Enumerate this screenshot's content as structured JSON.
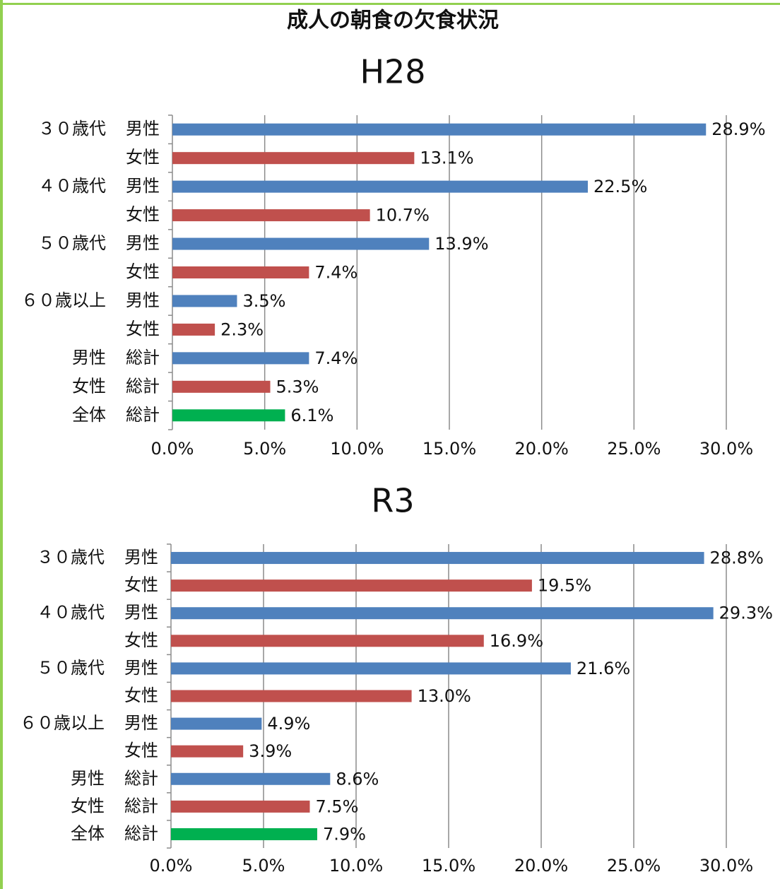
{
  "title": "成人の朝食の欠食状況",
  "chart_data": [
    {
      "type": "bar",
      "orientation": "horizontal",
      "title": "H28",
      "category_groups": [
        "３０歳代",
        null,
        "４０歳代",
        null,
        "５０歳代",
        null,
        "６０歳以上",
        null,
        "男性",
        "女性",
        "全体"
      ],
      "categories": [
        "男性",
        "女性",
        "男性",
        "女性",
        "男性",
        "女性",
        "男性",
        "女性",
        "総計",
        "総計",
        "総計"
      ],
      "values": [
        28.9,
        13.1,
        22.5,
        10.7,
        13.9,
        7.4,
        3.5,
        2.3,
        7.4,
        5.3,
        6.1
      ],
      "value_labels": [
        "28.9%",
        "13.1%",
        "22.5%",
        "10.7%",
        "13.9%",
        "7.4%",
        "3.5%",
        "2.3%",
        "7.4%",
        "5.3%",
        "6.1%"
      ],
      "colors": [
        "#4f81bd",
        "#c0504d",
        "#4f81bd",
        "#c0504d",
        "#4f81bd",
        "#c0504d",
        "#4f81bd",
        "#c0504d",
        "#4f81bd",
        "#c0504d",
        "#00b050"
      ],
      "xlim": [
        0,
        30
      ],
      "xticks": [
        {
          "value": 0,
          "label": "0.0%"
        },
        {
          "value": 5,
          "label": "5.0%"
        },
        {
          "value": 10,
          "label": "10.0%"
        },
        {
          "value": 15,
          "label": "15.0%"
        },
        {
          "value": 20,
          "label": "20.0%"
        },
        {
          "value": 25,
          "label": "25.0%"
        },
        {
          "value": 30,
          "label": "30.0%"
        }
      ],
      "grid": true
    },
    {
      "type": "bar",
      "orientation": "horizontal",
      "title": "R3",
      "category_groups": [
        "３０歳代",
        null,
        "４０歳代",
        null,
        "５０歳代",
        null,
        "６０歳以上",
        null,
        "男性",
        "女性",
        "全体"
      ],
      "categories": [
        "男性",
        "女性",
        "男性",
        "女性",
        "男性",
        "女性",
        "男性",
        "女性",
        "総計",
        "総計",
        "総計"
      ],
      "values": [
        28.8,
        19.5,
        29.3,
        16.9,
        21.6,
        13.0,
        4.9,
        3.9,
        8.6,
        7.5,
        7.9
      ],
      "value_labels": [
        "28.8%",
        "19.5%",
        "29.3%",
        "16.9%",
        "21.6%",
        "13.0%",
        "4.9%",
        "3.9%",
        "8.6%",
        "7.5%",
        "7.9%"
      ],
      "colors": [
        "#4f81bd",
        "#c0504d",
        "#4f81bd",
        "#c0504d",
        "#4f81bd",
        "#c0504d",
        "#4f81bd",
        "#c0504d",
        "#4f81bd",
        "#c0504d",
        "#00b050"
      ],
      "xlim": [
        0,
        30
      ],
      "xticks": [
        {
          "value": 0,
          "label": "0.0%"
        },
        {
          "value": 5,
          "label": "5.0%"
        },
        {
          "value": 10,
          "label": "10.0%"
        },
        {
          "value": 15,
          "label": "15.0%"
        },
        {
          "value": 20,
          "label": "20.0%"
        },
        {
          "value": 25,
          "label": "25.0%"
        },
        {
          "value": 30,
          "label": "30.0%"
        }
      ],
      "grid": true
    }
  ]
}
